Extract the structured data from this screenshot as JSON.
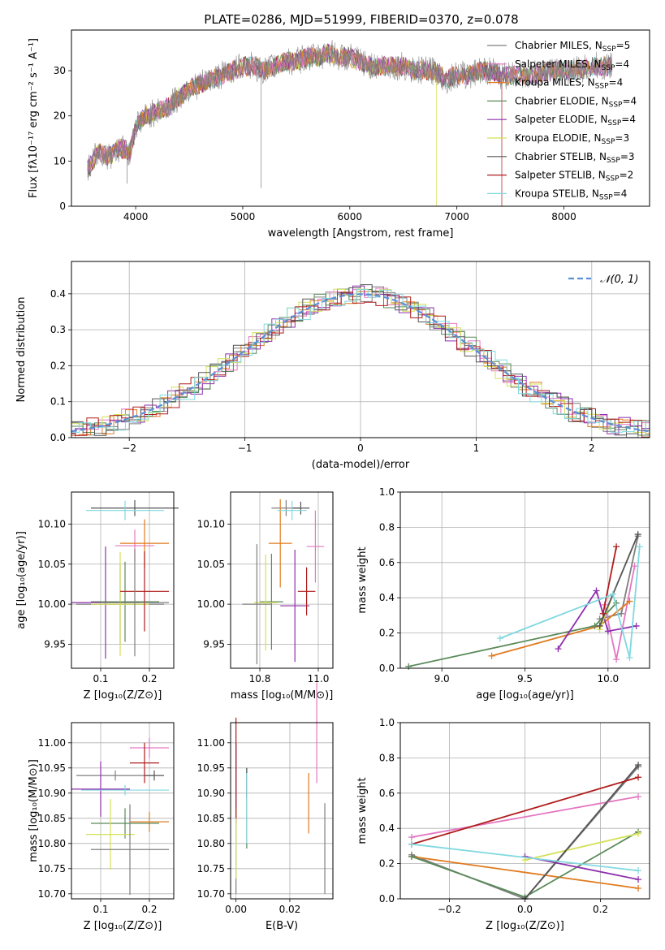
{
  "figure_title": "PLATE=0286, MJD=51999, FIBERID=0370, z=0.078",
  "models": [
    {
      "name": "Chabrier MILES",
      "n_ssp": "5",
      "color": "#7f7f7f"
    },
    {
      "name": "Salpeter MILES",
      "n_ssp": "4",
      "color": "#e377c2"
    },
    {
      "name": "Kroupa MILES",
      "n_ssp": "4",
      "color": "#e07b20"
    },
    {
      "name": "Chabrier ELODIE",
      "n_ssp": "4",
      "color": "#5a8a5a"
    },
    {
      "name": "Salpeter ELODIE",
      "n_ssp": "4",
      "color": "#8e2fae"
    },
    {
      "name": "Kroupa ELODIE",
      "n_ssp": "3",
      "color": "#d4e157"
    },
    {
      "name": "Chabrier STELIB",
      "n_ssp": "3",
      "color": "#555555"
    },
    {
      "name": "Salpeter STELIB",
      "n_ssp": "2",
      "color": "#b01c1c"
    },
    {
      "name": "Kroupa STELIB",
      "n_ssp": "4",
      "color": "#7fd8e0"
    }
  ],
  "chart_data": [
    {
      "type": "line",
      "xlabel": "wavelength [Angstrom, rest frame]",
      "ylabel": "Flux [fλ10⁻¹⁷ erg cm⁻² s⁻¹ A⁻¹]",
      "xlim": [
        3400,
        8800
      ],
      "ylim": [
        0,
        39
      ],
      "xticks": [
        4000,
        5000,
        6000,
        7000,
        8000
      ],
      "yticks": [
        0,
        10,
        20,
        30
      ],
      "grid": false,
      "legend": "right",
      "spectrum_points": [
        [
          3550,
          8
        ],
        [
          3650,
          12
        ],
        [
          3750,
          11
        ],
        [
          3850,
          13
        ],
        [
          3950,
          12
        ],
        [
          4000,
          18
        ],
        [
          4100,
          20
        ],
        [
          4200,
          21
        ],
        [
          4300,
          22
        ],
        [
          4400,
          24
        ],
        [
          4500,
          26
        ],
        [
          4600,
          27
        ],
        [
          4700,
          28
        ],
        [
          4800,
          29
        ],
        [
          4900,
          30
        ],
        [
          5000,
          31
        ],
        [
          5100,
          31
        ],
        [
          5200,
          30
        ],
        [
          5300,
          31
        ],
        [
          5400,
          32
        ],
        [
          5500,
          32
        ],
        [
          5600,
          33
        ],
        [
          5700,
          33
        ],
        [
          5800,
          34
        ],
        [
          5900,
          33
        ],
        [
          6000,
          33
        ],
        [
          6100,
          32
        ],
        [
          6200,
          31
        ],
        [
          6300,
          31
        ],
        [
          6400,
          31
        ],
        [
          6500,
          31
        ],
        [
          6600,
          30
        ],
        [
          6700,
          30
        ],
        [
          6800,
          30
        ],
        [
          6900,
          28
        ],
        [
          7000,
          29
        ],
        [
          7100,
          29
        ],
        [
          7200,
          30
        ],
        [
          7300,
          30
        ],
        [
          7400,
          29
        ],
        [
          7500,
          29
        ],
        [
          7700,
          29
        ],
        [
          7900,
          30
        ],
        [
          8100,
          30
        ],
        [
          8300,
          31
        ],
        [
          8450,
          31
        ]
      ]
    },
    {
      "type": "line",
      "xlabel": "(data-model)/error",
      "ylabel": "Normed distribution",
      "xlim": [
        -2.5,
        2.5
      ],
      "ylim": [
        0,
        0.49
      ],
      "xticks": [
        -2,
        -1,
        0,
        1,
        2
      ],
      "yticks": [
        0.0,
        0.1,
        0.2,
        0.3,
        0.4
      ],
      "grid": true,
      "legend": "top-right",
      "reference_curve": "𝒩(0, 1)",
      "histogram_bin_width": 0.1
    },
    {
      "type": "scatter",
      "xlabel": "Z [log₁₀(Z/Z⊙)]",
      "ylabel": "age  [log₁₀(age/yr)]",
      "xlim": [
        0.04,
        0.25
      ],
      "ylim": [
        9.92,
        10.14
      ],
      "xticks": [
        0.1,
        0.2
      ],
      "yticks": [
        9.95,
        10.0,
        10.05,
        10.1
      ],
      "grid": true,
      "points": [
        {
          "x": 0.14,
          "y": 10.0,
          "xerr": 0.09,
          "yerr": 0.05
        },
        {
          "x": 0.17,
          "y": 10.073,
          "xerr": 0.04,
          "yerr": 0.02
        },
        {
          "x": 0.19,
          "y": 10.076,
          "xerr": 0.05,
          "yerr": 0.03
        },
        {
          "x": 0.15,
          "y": 10.003,
          "xerr": 0.07,
          "yerr": 0.05
        },
        {
          "x": 0.11,
          "y": 10.002,
          "xerr": 0.07,
          "yerr": 0.07
        },
        {
          "x": 0.14,
          "y": 10.0,
          "xerr": 0.06,
          "yerr": 0.065
        },
        {
          "x": 0.17,
          "y": 10.12,
          "xerr": 0.09,
          "yerr": 0.01
        },
        {
          "x": 0.19,
          "y": 10.016,
          "xerr": 0.05,
          "yerr": 0.05
        },
        {
          "x": 0.15,
          "y": 10.117,
          "xerr": 0.08,
          "yerr": 0.012
        },
        {
          "x": 0.17,
          "y": 10.002,
          "xerr": 0.07,
          "yerr": 0.067
        }
      ]
    },
    {
      "type": "scatter",
      "xlabel": "mass [log₁₀(M/M⊙)]",
      "ylabel": "",
      "xlim": [
        10.7,
        11.05
      ],
      "ylim": [
        9.92,
        10.14
      ],
      "xticks": [
        10.8,
        11.0
      ],
      "yticks": [
        9.95,
        10.0,
        10.05,
        10.1
      ],
      "grid": true,
      "points": [
        {
          "x": 10.89,
          "y": 10.12,
          "xerr": 0.05,
          "yerr": 0.01
        },
        {
          "x": 10.99,
          "y": 10.072,
          "xerr": 0.03,
          "yerr": 0.045
        },
        {
          "x": 10.87,
          "y": 10.076,
          "xerr": 0.04,
          "yerr": 0.055
        },
        {
          "x": 10.84,
          "y": 10.003,
          "xerr": 0.04,
          "yerr": 0.06
        },
        {
          "x": 10.92,
          "y": 9.998,
          "xerr": 0.05,
          "yerr": 0.07
        },
        {
          "x": 10.82,
          "y": 10.002,
          "xerr": 0.04,
          "yerr": 0.06
        },
        {
          "x": 10.94,
          "y": 10.12,
          "xerr": 0.03,
          "yerr": 0.008
        },
        {
          "x": 10.96,
          "y": 10.016,
          "xerr": 0.03,
          "yerr": 0.03
        },
        {
          "x": 10.91,
          "y": 10.117,
          "xerr": 0.05,
          "yerr": 0.012
        },
        {
          "x": 10.79,
          "y": 10.0,
          "xerr": 0.05,
          "yerr": 0.075
        }
      ]
    },
    {
      "type": "line",
      "xlabel": "age  [log₁₀(age/yr)]",
      "ylabel": "mass weight",
      "xlim": [
        8.75,
        10.25
      ],
      "ylim": [
        0,
        1.0
      ],
      "xticks": [
        9.0,
        9.5,
        10.0
      ],
      "yticks": [
        0.0,
        0.2,
        0.4,
        0.6,
        0.8,
        1.0
      ],
      "grid": true,
      "series": [
        {
          "model": 0,
          "x": [
            9.95,
            10.08,
            10.18
          ],
          "y": [
            0.28,
            0.31,
            0.75
          ]
        },
        {
          "model": 1,
          "x": [
            9.98,
            10.05,
            10.16
          ],
          "y": [
            0.36,
            0.05,
            0.58
          ]
        },
        {
          "model": 2,
          "x": [
            9.3,
            9.95,
            10.13
          ],
          "y": [
            0.07,
            0.24,
            0.38
          ]
        },
        {
          "model": 3,
          "x": [
            8.8,
            9.92,
            10.05
          ],
          "y": [
            0.01,
            0.24,
            0.37
          ]
        },
        {
          "model": 4,
          "x": [
            9.7,
            9.93,
            10.0,
            10.17
          ],
          "y": [
            0.11,
            0.44,
            0.21,
            0.24
          ]
        },
        {
          "model": 5,
          "x": [
            9.95,
            10.03
          ],
          "y": [
            0.22,
            0.42
          ]
        },
        {
          "model": 6,
          "x": [
            9.95,
            10.18
          ],
          "y": [
            0.24,
            0.76
          ]
        },
        {
          "model": 7,
          "x": [
            9.97,
            10.05
          ],
          "y": [
            0.31,
            0.69
          ]
        },
        {
          "model": 8,
          "x": [
            9.35,
            10.03,
            10.13,
            10.19
          ],
          "y": [
            0.17,
            0.42,
            0.06,
            0.69
          ]
        }
      ]
    },
    {
      "type": "scatter",
      "xlabel": "Z [log₁₀(Z/Z⊙)]",
      "ylabel": "mass [log₁₀(M/M⊙)]",
      "xlim": [
        0.04,
        0.25
      ],
      "ylim": [
        10.69,
        11.04
      ],
      "xticks": [
        0.1,
        0.2
      ],
      "yticks": [
        10.7,
        10.75,
        10.8,
        10.85,
        10.9,
        10.95,
        11.0
      ],
      "grid": true,
      "points": [
        {
          "x": 0.13,
          "y": 10.935,
          "xerr": 0.08,
          "yerr": 0.01
        },
        {
          "x": 0.2,
          "y": 10.99,
          "xerr": 0.04,
          "yerr": 0.02
        },
        {
          "x": 0.2,
          "y": 10.843,
          "xerr": 0.04,
          "yerr": 0.02
        },
        {
          "x": 0.15,
          "y": 10.84,
          "xerr": 0.07,
          "yerr": 0.03
        },
        {
          "x": 0.1,
          "y": 10.908,
          "xerr": 0.06,
          "yerr": 0.055
        },
        {
          "x": 0.12,
          "y": 10.818,
          "xerr": 0.05,
          "yerr": 0.07
        },
        {
          "x": 0.21,
          "y": 10.935,
          "xerr": 0.02,
          "yerr": 0.01
        },
        {
          "x": 0.19,
          "y": 10.96,
          "xerr": 0.03,
          "yerr": 0.04
        },
        {
          "x": 0.15,
          "y": 10.906,
          "xerr": 0.09,
          "yerr": 0.01
        },
        {
          "x": 0.16,
          "y": 10.788,
          "xerr": 0.08,
          "yerr": 0.09
        }
      ]
    },
    {
      "type": "scatter",
      "xlabel": "E(B-V)",
      "ylabel": "",
      "xlim": [
        -0.002,
        0.036
      ],
      "ylim": [
        10.69,
        11.04
      ],
      "xticks": [
        0.0,
        0.02
      ],
      "yticks": [
        10.7,
        10.75,
        10.8,
        10.85,
        10.9,
        10.95,
        11.0
      ],
      "grid": true,
      "points": [
        {
          "x": 0.0,
          "y": 10.85,
          "yerr": 0.15
        },
        {
          "x": 0.03,
          "y": 11.02,
          "yerr": 0.1
        },
        {
          "x": 0.027,
          "y": 10.88,
          "yerr": 0.06
        },
        {
          "x": 0.004,
          "y": 10.87,
          "yerr": 0.08
        },
        {
          "x": 0.0,
          "y": 10.92,
          "yerr": 0.08
        },
        {
          "x": 0.0,
          "y": 10.8,
          "yerr": 0.07
        },
        {
          "x": 0.004,
          "y": 10.92,
          "yerr": 0.03
        },
        {
          "x": 0.0,
          "y": 10.95,
          "yerr": 0.1
        },
        {
          "x": 0.004,
          "y": 10.87,
          "yerr": 0.07
        },
        {
          "x": 0.033,
          "y": 10.79,
          "yerr": 0.09
        }
      ]
    },
    {
      "type": "line",
      "xlabel": "Z [log₁₀(Z/Z⊙)]",
      "ylabel": "mass weight",
      "xlim": [
        -0.33,
        0.33
      ],
      "ylim": [
        0,
        1.0
      ],
      "xticks": [
        -0.2,
        0.0,
        0.2
      ],
      "yticks": [
        0.0,
        0.2,
        0.4,
        0.6,
        0.8,
        1.0
      ],
      "grid": true,
      "series": [
        {
          "model": 0,
          "x": [
            -0.3,
            0.0,
            0.3
          ],
          "y": [
            0.25,
            0.0,
            0.75
          ]
        },
        {
          "model": 1,
          "x": [
            -0.3,
            0.3
          ],
          "y": [
            0.35,
            0.58
          ]
        },
        {
          "model": 2,
          "x": [
            -0.3,
            0.3
          ],
          "y": [
            0.24,
            0.06
          ]
        },
        {
          "model": 3,
          "x": [
            -0.3,
            0.0,
            0.3
          ],
          "y": [
            0.24,
            0.01,
            0.38
          ]
        },
        {
          "model": 4,
          "x": [
            0.0,
            0.3
          ],
          "y": [
            0.24,
            0.11
          ]
        },
        {
          "model": 5,
          "x": [
            0.0,
            0.3
          ],
          "y": [
            0.22,
            0.37
          ]
        },
        {
          "model": 6,
          "x": [
            0.0,
            0.3
          ],
          "y": [
            0.0,
            0.76
          ]
        },
        {
          "model": 7,
          "x": [
            -0.3,
            0.3
          ],
          "y": [
            0.31,
            0.69
          ]
        },
        {
          "model": 8,
          "x": [
            -0.3,
            0.3
          ],
          "y": [
            0.31,
            0.16
          ]
        }
      ]
    }
  ]
}
